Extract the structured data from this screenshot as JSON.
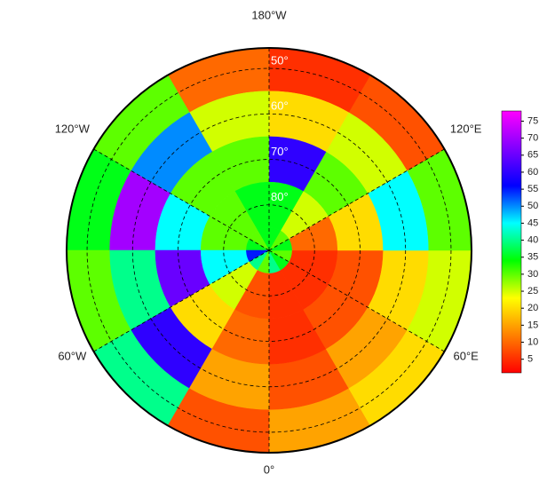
{
  "chart_data": {
    "type": "polar-grid",
    "colorbar": {
      "clim": [
        1,
        78
      ],
      "ticks": [
        5,
        10,
        15,
        20,
        25,
        30,
        35,
        40,
        45,
        50,
        55,
        60,
        65,
        70,
        75
      ]
    },
    "colormap": [
      "#ff0000",
      "#ff8000",
      "#ffff00",
      "#00ff00",
      "#00ffff",
      "#0000ff",
      "#8000ff",
      "#ff00ff"
    ],
    "lat_edges": [
      45.5,
      55,
      65,
      75,
      85,
      90
    ],
    "lon_edges": [
      0,
      30,
      60,
      90,
      120,
      150,
      180,
      210,
      240,
      270,
      300,
      330,
      360
    ],
    "values": [
      [
        15,
        20,
        25,
        30,
        8,
        5,
        10,
        30,
        35,
        30,
        40,
        8
      ],
      [
        8,
        15,
        20,
        45,
        25,
        20,
        25,
        50,
        70,
        40,
        60,
        15
      ],
      [
        5,
        8,
        8,
        20,
        30,
        60,
        30,
        30,
        45,
        65,
        20,
        10
      ],
      [
        5,
        5,
        5,
        10,
        25,
        35,
        35,
        30,
        30,
        45,
        25,
        8
      ],
      [
        40,
        35,
        30,
        35,
        30,
        35,
        35,
        30,
        35,
        55,
        40,
        30
      ]
    ],
    "lat_circles": [
      {
        "value": 50,
        "label": "50°"
      },
      {
        "value": 60,
        "label": "60°"
      },
      {
        "value": 70,
        "label": "70°"
      },
      {
        "value": 80,
        "label": "80°"
      }
    ],
    "lon_labels": [
      {
        "value": 0,
        "label": "0°"
      },
      {
        "value": 60,
        "label": "60°E"
      },
      {
        "value": 120,
        "label": "120°E"
      },
      {
        "value": 180,
        "label": "180°W"
      },
      {
        "value": 240,
        "label": "120°W"
      },
      {
        "value": 300,
        "label": "60°W"
      }
    ]
  }
}
